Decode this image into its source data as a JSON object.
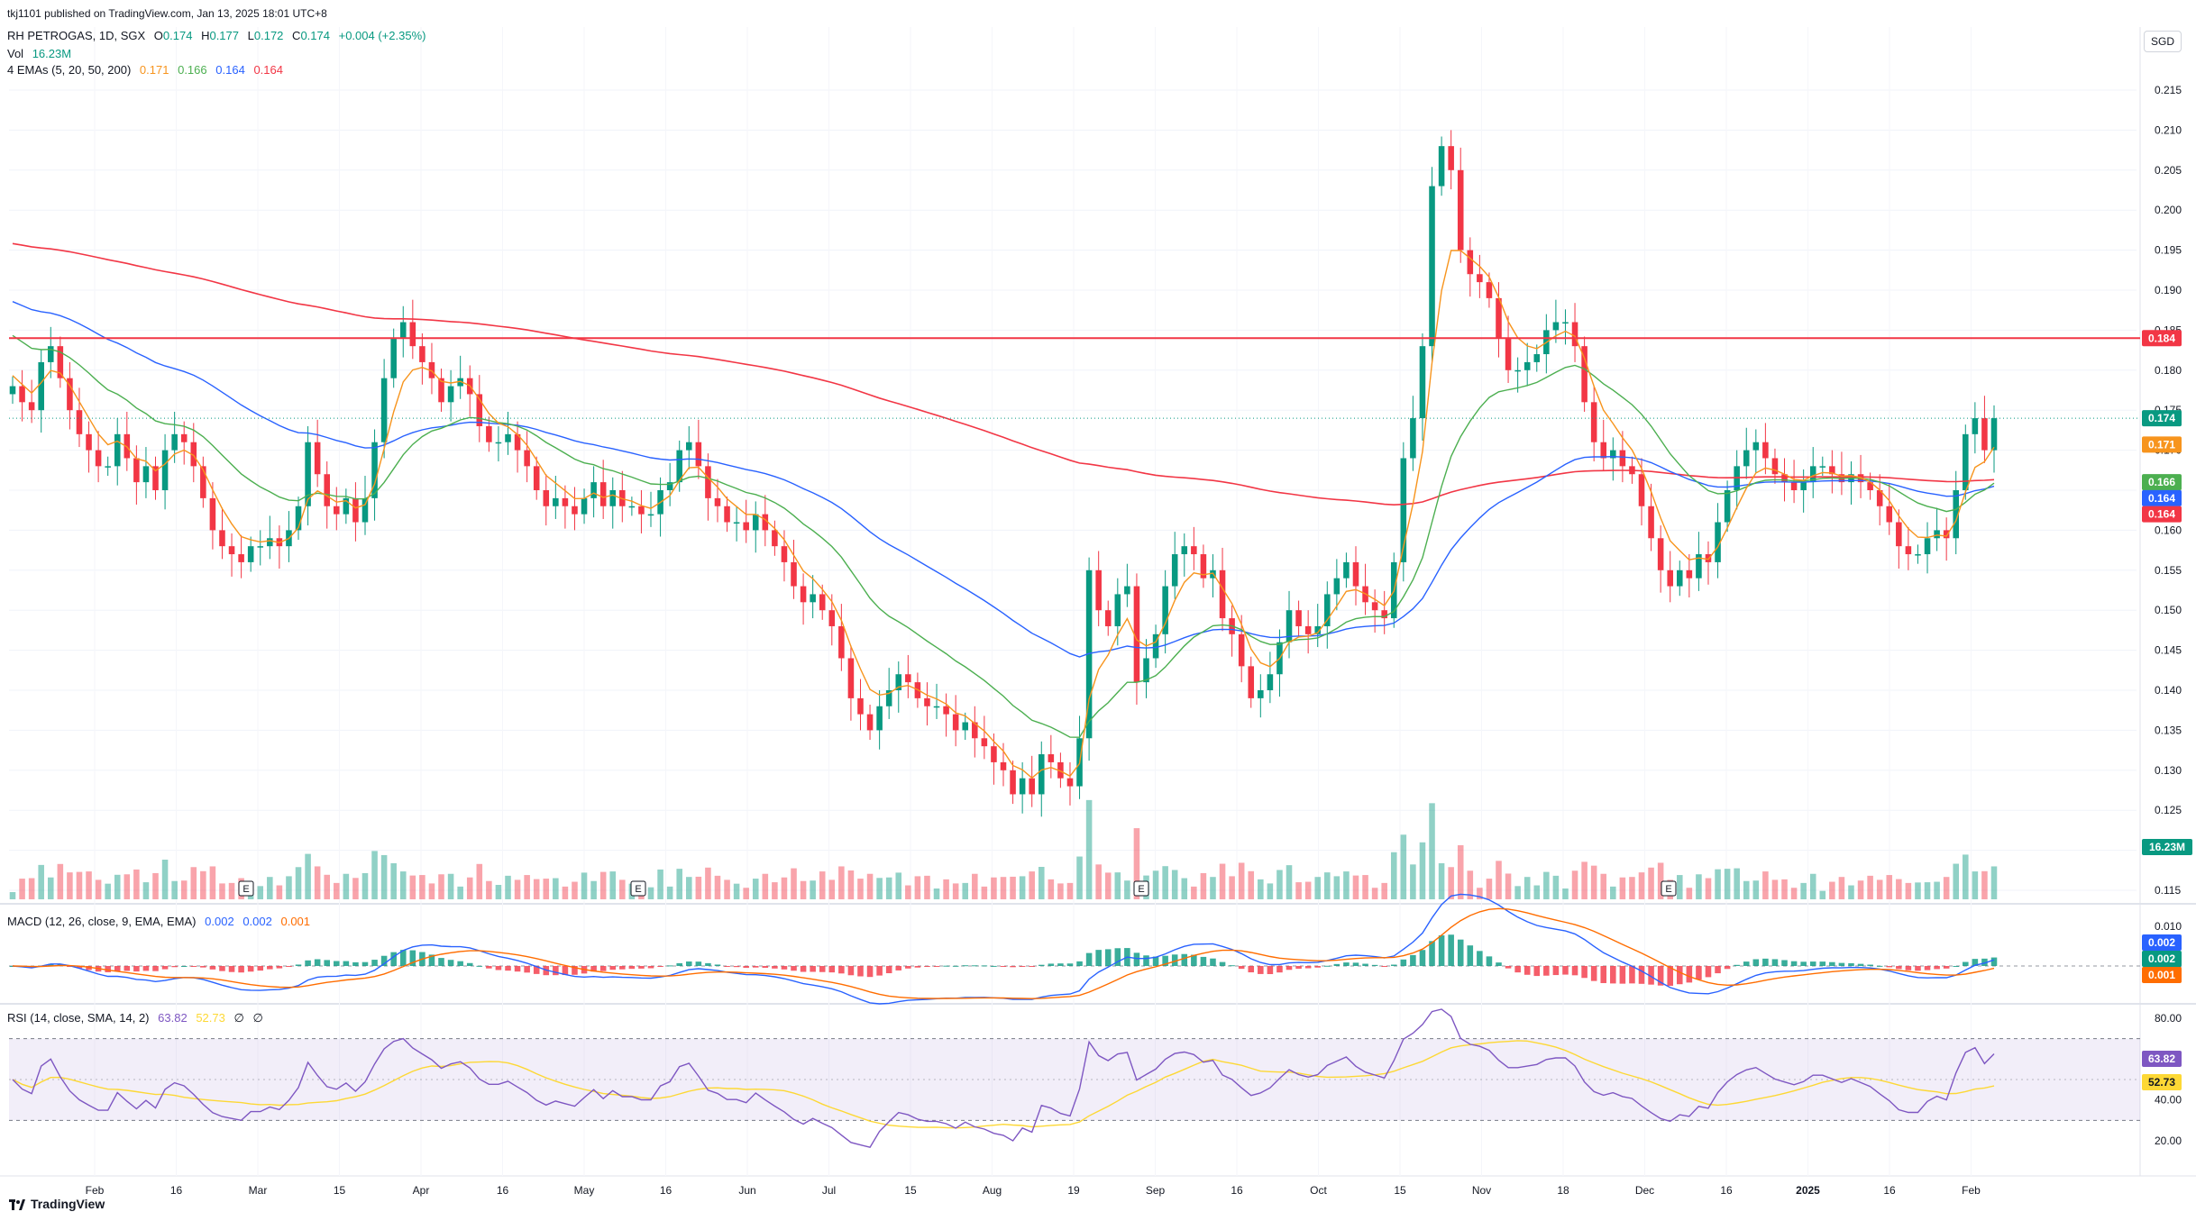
{
  "header": {
    "published": "tkj1101 published on TradingView.com, Jan 13, 2025 18:01 UTC+8",
    "symbol": "RH PETROGAS, 1D, SGX",
    "o_label": "O",
    "o_value": "0.174",
    "h_label": "H",
    "h_value": "0.177",
    "l_label": "L",
    "l_value": "0.172",
    "c_label": "C",
    "c_value": "0.174",
    "change": "+0.004 (+2.35%)",
    "vol_label": "Vol",
    "vol_value": "16.23M",
    "ema_label": "4 EMAs (5, 20, 50, 200)",
    "ema_values": [
      "0.171",
      "0.166",
      "0.164",
      "0.164"
    ]
  },
  "currency": "SGD",
  "macd_legend": {
    "label": "MACD (12, 26, close, 9, EMA, EMA)",
    "values": [
      "0.002",
      "0.002",
      "0.001"
    ]
  },
  "rsi_legend": {
    "label": "RSI (14, close, SMA, 14, 2)",
    "values": [
      "63.82",
      "52.73",
      "∅",
      "∅"
    ]
  },
  "footer": {
    "brand": "TradingView"
  },
  "colors": {
    "up": "#089981",
    "down": "#f23645",
    "ema5": "#f7941d",
    "ema20": "#4caf50",
    "ema50": "#2962ff",
    "ema200": "#f23645",
    "macd": "#2962ff",
    "signal": "#ff6d00",
    "rsi": "#7e57c2",
    "rsi_ma": "#fdd835",
    "resistance": "#f23645"
  },
  "chart_data": {
    "type": "candlestick",
    "price_axis": {
      "ticks": [
        "0.215",
        "0.210",
        "0.205",
        "0.200",
        "0.195",
        "0.190",
        "0.185",
        "0.180",
        "0.175",
        "0.170",
        "0.165",
        "0.160",
        "0.155",
        "0.150",
        "0.145",
        "0.140",
        "0.135",
        "0.130",
        "0.125",
        "0.120",
        "0.115"
      ]
    },
    "x_axis": {
      "ticks": [
        "Feb",
        "16",
        "Mar",
        "15",
        "Apr",
        "16",
        "May",
        "16",
        "Jun",
        "Jul",
        "15",
        "Aug",
        "19",
        "Sep",
        "16",
        "Oct",
        "15",
        "Nov",
        "18",
        "Dec",
        "16",
        "2025",
        "16",
        "Feb"
      ]
    },
    "resistance_line": 0.184,
    "price_labels": [
      {
        "name": "resistance",
        "value": "0.184"
      },
      {
        "name": "last-close",
        "value": "0.174"
      },
      {
        "name": "ema5",
        "value": "0.171"
      },
      {
        "name": "ema20",
        "value": "0.166"
      },
      {
        "name": "ema50",
        "value": "0.164"
      },
      {
        "name": "ema200",
        "value": "0.164"
      }
    ],
    "volume_label": "16.23M",
    "dividend_markers": [
      "E",
      "E",
      "E",
      "E"
    ],
    "closes": [
      0.178,
      0.176,
      0.175,
      0.181,
      0.183,
      0.179,
      0.175,
      0.172,
      0.17,
      0.168,
      0.168,
      0.172,
      0.169,
      0.166,
      0.168,
      0.165,
      0.17,
      0.172,
      0.171,
      0.168,
      0.164,
      0.16,
      0.158,
      0.157,
      0.156,
      0.158,
      0.158,
      0.159,
      0.158,
      0.16,
      0.163,
      0.171,
      0.167,
      0.163,
      0.162,
      0.164,
      0.161,
      0.164,
      0.171,
      0.179,
      0.184,
      0.186,
      0.183,
      0.181,
      0.179,
      0.176,
      0.178,
      0.179,
      0.177,
      0.173,
      0.171,
      0.171,
      0.172,
      0.17,
      0.168,
      0.165,
      0.163,
      0.164,
      0.163,
      0.162,
      0.164,
      0.166,
      0.163,
      0.165,
      0.163,
      0.163,
      0.162,
      0.162,
      0.165,
      0.166,
      0.17,
      0.171,
      0.168,
      0.164,
      0.163,
      0.161,
      0.161,
      0.16,
      0.162,
      0.16,
      0.158,
      0.156,
      0.153,
      0.151,
      0.152,
      0.15,
      0.148,
      0.144,
      0.139,
      0.137,
      0.135,
      0.138,
      0.14,
      0.142,
      0.141,
      0.139,
      0.138,
      0.138,
      0.137,
      0.135,
      0.136,
      0.134,
      0.133,
      0.131,
      0.13,
      0.127,
      0.129,
      0.127,
      0.132,
      0.131,
      0.129,
      0.128,
      0.134,
      0.155,
      0.15,
      0.148,
      0.152,
      0.153,
      0.141,
      0.144,
      0.147,
      0.153,
      0.157,
      0.158,
      0.157,
      0.154,
      0.155,
      0.149,
      0.147,
      0.143,
      0.139,
      0.14,
      0.142,
      0.146,
      0.15,
      0.148,
      0.147,
      0.148,
      0.152,
      0.154,
      0.156,
      0.153,
      0.151,
      0.15,
      0.149,
      0.156,
      0.169,
      0.174,
      0.183,
      0.203,
      0.208,
      0.205,
      0.195,
      0.192,
      0.191,
      0.189,
      0.184,
      0.18,
      0.18,
      0.181,
      0.182,
      0.185,
      0.186,
      0.186,
      0.183,
      0.176,
      0.171,
      0.169,
      0.17,
      0.168,
      0.167,
      0.163,
      0.159,
      0.155,
      0.153,
      0.155,
      0.154,
      0.157,
      0.156,
      0.161,
      0.165,
      0.168,
      0.17,
      0.171,
      0.169,
      0.167,
      0.166,
      0.165,
      0.166,
      0.168,
      0.168,
      0.167,
      0.166,
      0.167,
      0.166,
      0.165,
      0.163,
      0.161,
      0.158,
      0.157,
      0.157,
      0.159,
      0.16,
      0.159,
      0.165,
      0.172,
      0.174,
      0.17,
      0.174
    ],
    "rsi_axis": {
      "ticks": [
        "80.00",
        "60.00",
        "40.00",
        "20.00"
      ],
      "overbought": 70,
      "oversold": 30
    },
    "macd_axis": {
      "ticks": [
        "0.010",
        "0.000"
      ]
    }
  }
}
